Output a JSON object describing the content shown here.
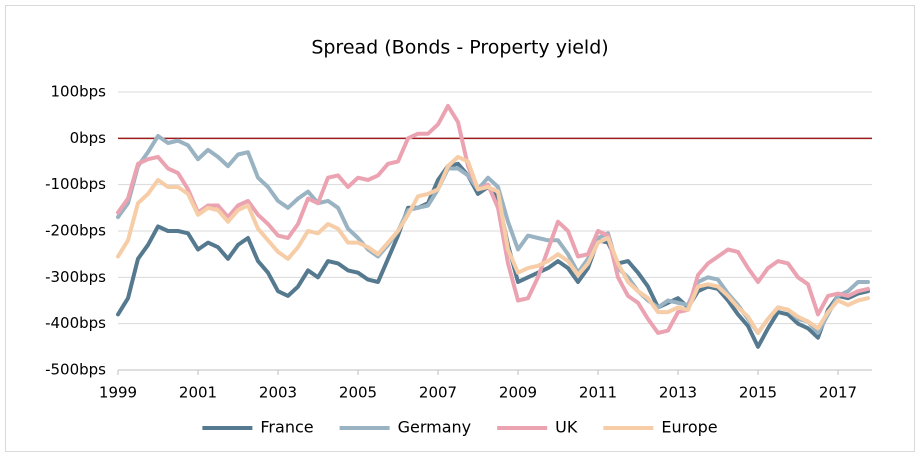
{
  "chart_data": {
    "type": "line",
    "title": "Spread (Bonds - Property yield)",
    "x": [
      1999,
      1999.25,
      1999.5,
      1999.75,
      2000,
      2000.25,
      2000.5,
      2000.75,
      2001,
      2001.25,
      2001.5,
      2001.75,
      2002,
      2002.25,
      2002.5,
      2002.75,
      2003,
      2003.25,
      2003.5,
      2003.75,
      2004,
      2004.25,
      2004.5,
      2004.75,
      2005,
      2005.25,
      2005.5,
      2005.75,
      2006,
      2006.25,
      2006.5,
      2006.75,
      2007,
      2007.25,
      2007.5,
      2007.75,
      2008,
      2008.25,
      2008.5,
      2008.75,
      2009,
      2009.25,
      2009.5,
      2009.75,
      2010,
      2010.25,
      2010.5,
      2010.75,
      2011,
      2011.25,
      2011.5,
      2011.75,
      2012,
      2012.25,
      2012.5,
      2012.75,
      2013,
      2013.25,
      2013.5,
      2013.75,
      2014,
      2014.25,
      2014.5,
      2014.75,
      2015,
      2015.25,
      2015.5,
      2015.75,
      2016,
      2016.25,
      2016.5,
      2016.75,
      2017,
      2017.25,
      2017.5,
      2017.75
    ],
    "series": [
      {
        "name": "France",
        "color": "#55798f",
        "values": [
          -380,
          -345,
          -260,
          -230,
          -190,
          -200,
          -200,
          -205,
          -240,
          -225,
          -235,
          -260,
          -230,
          -215,
          -265,
          -290,
          -330,
          -340,
          -320,
          -285,
          -300,
          -265,
          -270,
          -285,
          -290,
          -305,
          -310,
          -260,
          -210,
          -150,
          -150,
          -140,
          -90,
          -60,
          -55,
          -80,
          -120,
          -105,
          -130,
          -230,
          -310,
          -300,
          -290,
          -280,
          -265,
          -280,
          -310,
          -280,
          -220,
          -225,
          -270,
          -265,
          -290,
          -320,
          -365,
          -355,
          -345,
          -365,
          -330,
          -320,
          -325,
          -350,
          -380,
          -405,
          -450,
          -410,
          -375,
          -380,
          -400,
          -410,
          -430,
          -370,
          -340,
          -345,
          -335,
          -330
        ]
      },
      {
        "name": "Germany",
        "color": "#9ab3c3",
        "values": [
          -170,
          -140,
          -60,
          -30,
          5,
          -10,
          -5,
          -15,
          -45,
          -25,
          -40,
          -60,
          -35,
          -30,
          -85,
          -105,
          -135,
          -150,
          -130,
          -115,
          -140,
          -135,
          -150,
          -195,
          -215,
          -240,
          -255,
          -230,
          -200,
          -155,
          -150,
          -145,
          -110,
          -65,
          -65,
          -80,
          -110,
          -85,
          -105,
          -180,
          -240,
          -210,
          -215,
          -220,
          -220,
          -250,
          -290,
          -260,
          -215,
          -205,
          -280,
          -300,
          -330,
          -350,
          -365,
          -350,
          -355,
          -360,
          -310,
          -300,
          -305,
          -335,
          -360,
          -390,
          -420,
          -390,
          -365,
          -370,
          -390,
          -395,
          -420,
          -380,
          -340,
          -330,
          -310,
          -310
        ]
      },
      {
        "name": "UK",
        "color": "#eba3b2",
        "values": [
          -160,
          -130,
          -55,
          -45,
          -40,
          -65,
          -75,
          -110,
          -160,
          -145,
          -145,
          -170,
          -145,
          -135,
          -165,
          -185,
          -210,
          -215,
          -185,
          -130,
          -140,
          -85,
          -80,
          -105,
          -85,
          -90,
          -80,
          -55,
          -50,
          0,
          10,
          10,
          30,
          70,
          35,
          -60,
          -110,
          -100,
          -150,
          -270,
          -350,
          -345,
          -300,
          -240,
          -180,
          -200,
          -255,
          -250,
          -200,
          -210,
          -300,
          -340,
          -355,
          -390,
          -420,
          -415,
          -375,
          -370,
          -295,
          -270,
          -255,
          -240,
          -245,
          -280,
          -310,
          -280,
          -265,
          -270,
          -300,
          -315,
          -380,
          -340,
          -335,
          -340,
          -330,
          -325
        ]
      },
      {
        "name": "Europe",
        "color": "#f6cda6",
        "values": [
          -255,
          -220,
          -140,
          -120,
          -90,
          -105,
          -105,
          -120,
          -165,
          -150,
          -155,
          -180,
          -155,
          -145,
          -195,
          -220,
          -245,
          -260,
          -235,
          -200,
          -205,
          -185,
          -195,
          -225,
          -225,
          -235,
          -250,
          -225,
          -200,
          -165,
          -125,
          -120,
          -110,
          -60,
          -40,
          -50,
          -110,
          -105,
          -115,
          -240,
          -290,
          -280,
          -275,
          -265,
          -250,
          -265,
          -295,
          -270,
          -225,
          -215,
          -270,
          -310,
          -330,
          -345,
          -375,
          -375,
          -365,
          -370,
          -320,
          -315,
          -320,
          -340,
          -365,
          -385,
          -420,
          -390,
          -365,
          -370,
          -385,
          -395,
          -410,
          -375,
          -350,
          -360,
          -350,
          -345
        ]
      }
    ],
    "xlim": [
      1999,
      2017.85
    ],
    "xticks": [
      1999,
      2001,
      2003,
      2005,
      2007,
      2009,
      2011,
      2013,
      2015,
      2017
    ],
    "ylim": [
      -500,
      100
    ],
    "yticks": [
      {
        "value": 100,
        "label": "100bps"
      },
      {
        "value": 0,
        "label": "0bps"
      },
      {
        "value": -100,
        "label": "-100bps"
      },
      {
        "value": -200,
        "label": "-200bps"
      },
      {
        "value": -300,
        "label": "-300bps"
      },
      {
        "value": -400,
        "label": "-400bps"
      },
      {
        "value": -500,
        "label": "-500bps"
      }
    ],
    "grid": true,
    "reference_line": {
      "value": 0,
      "color": "#9b1c1c"
    },
    "legend": "bottom"
  }
}
